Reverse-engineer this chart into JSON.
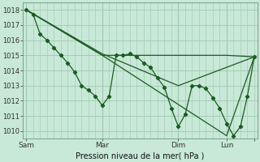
{
  "background_color": "#c8e8d8",
  "grid_color": "#a0c8b0",
  "line_color": "#1a5c20",
  "title": "Pression niveau de la mer( hPa )",
  "ylim": [
    1009.5,
    1018.5
  ],
  "yticks": [
    1010,
    1011,
    1012,
    1013,
    1014,
    1015,
    1016,
    1017,
    1018
  ],
  "xlim": [
    -0.5,
    33.5
  ],
  "xtick_pos": [
    0,
    11,
    22,
    29,
    33
  ],
  "xtick_labels": [
    "Sam",
    "Mar",
    "Dim",
    "Lun",
    ""
  ],
  "vlines": [
    0,
    11,
    22,
    29
  ],
  "series1_x": [
    0,
    1,
    2,
    3,
    4,
    5,
    6,
    7,
    8,
    9,
    10,
    11,
    12,
    13,
    14,
    15,
    16,
    17,
    18,
    19,
    20,
    21,
    22,
    23,
    24,
    25,
    26,
    27,
    28,
    29,
    30,
    31,
    32,
    33
  ],
  "series1_y": [
    1018.0,
    1017.7,
    1016.4,
    1016.0,
    1015.5,
    1015.0,
    1014.5,
    1013.9,
    1013.0,
    1012.7,
    1012.3,
    1011.7,
    1012.3,
    1015.0,
    1015.0,
    1015.1,
    1014.9,
    1014.5,
    1014.2,
    1013.5,
    1012.9,
    1011.5,
    1010.3,
    1011.1,
    1013.0,
    1013.0,
    1012.8,
    1012.2,
    1011.5,
    1010.5,
    1009.7,
    1010.3,
    1012.3,
    1014.9
  ],
  "series2_x": [
    0,
    11,
    22,
    29,
    33
  ],
  "series2_y": [
    1018.0,
    1015.0,
    1015.0,
    1015.0,
    1014.9
  ],
  "series3_x": [
    0,
    11,
    22,
    33
  ],
  "series3_y": [
    1018.0,
    1015.1,
    1013.0,
    1014.9
  ],
  "series4_x": [
    0,
    11,
    29,
    33
  ],
  "series4_y": [
    1018.0,
    1015.0,
    1009.7,
    1014.9
  ]
}
